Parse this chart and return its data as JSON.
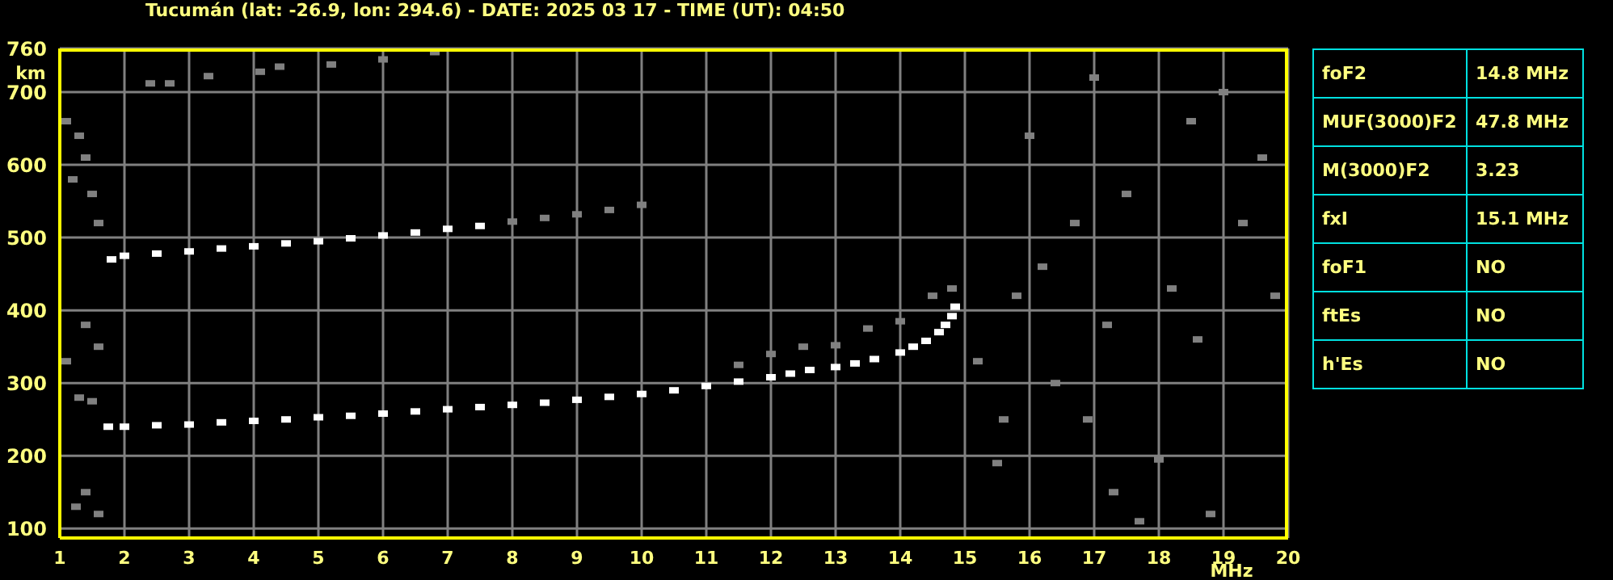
{
  "chart_data": [
    {
      "type": "scatter",
      "title": "Tucumán (lat: -26.9, lon: 294.6) - DATE: 2025 03 17 - TIME (UT): 04:50",
      "xlabel": "MHz",
      "ylabel": "km",
      "xlim": [
        1,
        20
      ],
      "xticks": [
        1,
        2,
        3,
        4,
        5,
        6,
        7,
        8,
        9,
        10,
        11,
        12,
        13,
        14,
        15,
        16,
        17,
        18,
        19,
        20
      ],
      "ylim": [
        87,
        760
      ],
      "yticks": [
        100,
        200,
        300,
        400,
        500,
        600,
        700,
        760
      ],
      "grid": true,
      "marker": "square",
      "series": [
        {
          "color": "#ffffff",
          "x": [
            1.75,
            2,
            2.5,
            3,
            3.5,
            4,
            4.5,
            5,
            5.5,
            6,
            6.5,
            7,
            7.5,
            8,
            8.5,
            9,
            9.5,
            10,
            10.5,
            11,
            11.5,
            12,
            12.3,
            12.6,
            13,
            13.3,
            13.6,
            14,
            14.2,
            14.4,
            14.6,
            14.7,
            14.8,
            14.85,
            1.8,
            2,
            2.5,
            3,
            3.5,
            4,
            4.5,
            5,
            5.5,
            6,
            6.5,
            7,
            7.5
          ],
          "values": [
            240,
            240,
            242,
            243,
            246,
            248,
            250,
            253,
            255,
            258,
            261,
            264,
            267,
            270,
            273,
            277,
            281,
            285,
            290,
            296,
            302,
            308,
            313,
            318,
            322,
            327,
            333,
            342,
            350,
            358,
            370,
            380,
            392,
            405,
            470,
            475,
            478,
            481,
            485,
            488,
            492,
            495,
            499,
            503,
            507,
            512,
            516
          ]
        },
        {
          "color": "#808080",
          "x": [
            8,
            8.5,
            9,
            9.5,
            10,
            11.5,
            12,
            12.5,
            13,
            13.5,
            14,
            14.5,
            14.8,
            1.1,
            1.3,
            1.4,
            1.2,
            1.5,
            1.6,
            1.4,
            1.6,
            1.1,
            1.3,
            1.5,
            1.4,
            1.6,
            1.25,
            2.4,
            2.7,
            3.3,
            4.1,
            4.4,
            5.2,
            6,
            6.8,
            15.2,
            15.5,
            16.2,
            16.4,
            16.9,
            17.3,
            17.7,
            18,
            18.2,
            18.6,
            19,
            19.3,
            19.6,
            16,
            17,
            18.5,
            15.6,
            19.8,
            17.5,
            16.7,
            18.8,
            15.8,
            17.2
          ],
          "values": [
            522,
            527,
            532,
            538,
            545,
            325,
            340,
            350,
            352,
            375,
            385,
            420,
            430,
            660,
            640,
            610,
            580,
            560,
            520,
            380,
            350,
            330,
            280,
            275,
            150,
            120,
            130,
            712,
            712,
            722,
            728,
            735,
            738,
            745,
            755,
            330,
            190,
            460,
            300,
            250,
            150,
            110,
            195,
            430,
            360,
            700,
            520,
            610,
            640,
            720,
            660,
            250,
            420,
            560,
            520,
            120,
            420,
            380
          ]
        }
      ]
    },
    {
      "type": "other",
      "annotations": [
        "foF2",
        "14.8 MHz",
        "MUF(3000)F2",
        "47.8 MHz",
        "M(3000)F2",
        "3.23",
        "fxI",
        "15.1 MHz",
        "foF1",
        "NO",
        "ftEs",
        "NO",
        "h'Es",
        "NO"
      ]
    }
  ]
}
